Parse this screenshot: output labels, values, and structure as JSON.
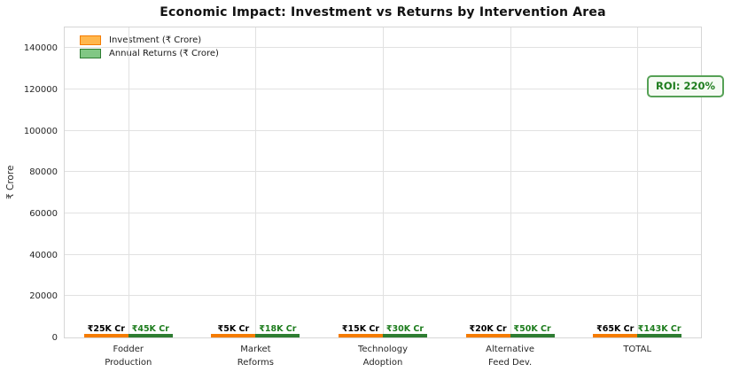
{
  "chart_data": {
    "type": "bar",
    "title": "Economic Impact: Investment vs Returns by Intervention Area",
    "xlabel": "",
    "ylabel": "₹ Crore",
    "ylim": [
      0,
      150000
    ],
    "yticks": [
      0,
      20000,
      40000,
      60000,
      80000,
      100000,
      120000,
      140000
    ],
    "grid": "both",
    "legend_position": "upper-left",
    "categories": [
      "Fodder\nProduction",
      "Market\nReforms",
      "Technology\nAdoption",
      "Alternative\nFeed Dev.",
      "TOTAL"
    ],
    "series": [
      {
        "id": "investment",
        "name": "Investment (₹ Crore)",
        "values": [
          25000,
          5000,
          15000,
          20000,
          65000
        ],
        "value_labels": [
          "₹25K Cr",
          "₹5K Cr",
          "₹15K Cr",
          "₹20K Cr",
          "₹65K Cr"
        ],
        "label_color": "#000000",
        "swatch_fill": "#ffb74d",
        "swatch_edge": "#f57c00",
        "colors": [
          "#ffb74d",
          "#ffb74d",
          "#ffb74d",
          "#ffb74d",
          "#f57c00"
        ],
        "edge_colors": [
          "#f57c00",
          "#f57c00",
          "#f57c00",
          "#f57c00",
          "#f57c00"
        ]
      },
      {
        "id": "annual-returns",
        "name": "Annual Returns (₹ Crore)",
        "values": [
          45000,
          18000,
          30000,
          50000,
          143000
        ],
        "value_labels": [
          "₹45K Cr",
          "₹18K Cr",
          "₹30K Cr",
          "₹50K Cr",
          "₹143K Cr"
        ],
        "label_color": "#1e7d1e",
        "swatch_fill": "#81c784",
        "swatch_edge": "#2e7d32",
        "colors": [
          "#81c784",
          "#81c784",
          "#81c784",
          "#81c784",
          "#2e7d32"
        ],
        "edge_colors": [
          "#2e7d32",
          "#2e7d32",
          "#2e7d32",
          "#2e7d32",
          "#2e7d32"
        ]
      }
    ],
    "annotation": {
      "text": "ROI: 220%"
    }
  }
}
